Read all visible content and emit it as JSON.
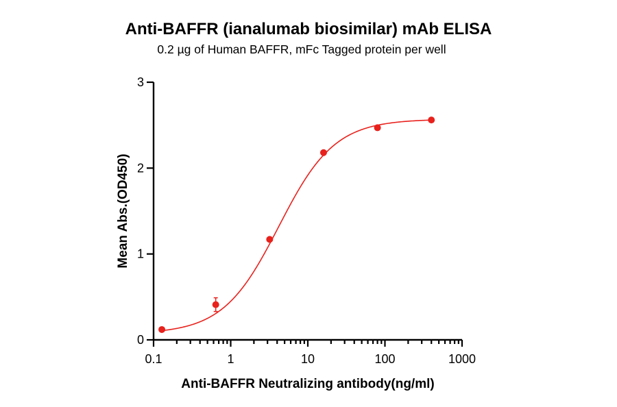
{
  "chart_data": {
    "type": "scatter",
    "title": "Anti-BAFFR (ianalumab biosimilar) mAb ELISA",
    "subtitle": "0.2 µg of Human BAFFR, mFc Tagged protein per well",
    "xlabel": "Anti-BAFFR Neutralizing antibody(ng/ml)",
    "ylabel": "Mean Abs.(OD450)",
    "x_scale": "log",
    "xlim": [
      0.1,
      1000
    ],
    "ylim": [
      0,
      3
    ],
    "x_ticks": [
      "0.1",
      "1",
      "10",
      "100",
      "1000"
    ],
    "y_ticks": [
      "0",
      "1",
      "2",
      "3"
    ],
    "grid": false,
    "legend": "none",
    "series": [
      {
        "x": [
          0.128,
          0.64,
          3.2,
          16,
          80,
          400
        ],
        "y": [
          0.12,
          0.41,
          1.17,
          2.18,
          2.47,
          2.56
        ],
        "error": [
          0.02,
          0.08,
          0.02,
          0.02,
          0.02,
          0.02
        ],
        "fit": {
          "model": "4PL",
          "bottom": 0.07,
          "top": 2.57,
          "ec50": 4.2,
          "hill": 1.2
        },
        "color": "#e8211c"
      }
    ]
  }
}
